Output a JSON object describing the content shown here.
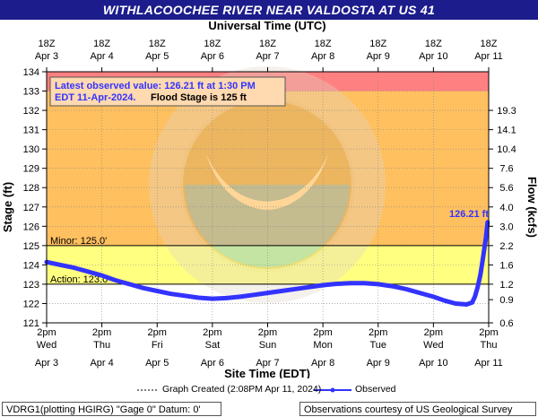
{
  "header": {
    "title": "WITHLACOOCHEE RIVER NEAR VALDOSTA AT US 41"
  },
  "chart_data": {
    "type": "line",
    "title": "WITHLACOOCHEE RIVER NEAR VALDOSTA AT US 41",
    "top_axis_label": "Universal Time (UTC)",
    "xlabel": "Site Time (EDT)",
    "ylabel": "Stage (ft)",
    "y2label": "Flow (kcfs)",
    "ylim": [
      121,
      134
    ],
    "yticks": [
      121,
      122,
      123,
      124,
      125,
      126,
      127,
      128,
      129,
      130,
      131,
      132,
      133,
      134
    ],
    "flow_ticks": [
      {
        "stage": 122.2,
        "label": "0.9"
      },
      {
        "stage": 123.0,
        "label": "1.2"
      },
      {
        "stage": 124.0,
        "label": "1.6"
      },
      {
        "stage": 125.0,
        "label": "2.2"
      },
      {
        "stage": 126.0,
        "label": "3.0"
      },
      {
        "stage": 127.0,
        "label": "4.0"
      },
      {
        "stage": 128.0,
        "label": "5.6"
      },
      {
        "stage": 129.0,
        "label": "7.6"
      },
      {
        "stage": 130.0,
        "label": "10.4"
      },
      {
        "stage": 131.0,
        "label": "14.1"
      },
      {
        "stage": 132.0,
        "label": "19.3"
      },
      {
        "stage": 121.0,
        "label": "0.6"
      }
    ],
    "bottom_ticks": [
      {
        "t": "2pm",
        "d": "Wed",
        "date": "Apr 3"
      },
      {
        "t": "2pm",
        "d": "Thu",
        "date": "Apr 4"
      },
      {
        "t": "2pm",
        "d": "Fri",
        "date": "Apr 5"
      },
      {
        "t": "2pm",
        "d": "Sat",
        "date": "Apr 6"
      },
      {
        "t": "2pm",
        "d": "Sun",
        "date": "Apr 7"
      },
      {
        "t": "2pm",
        "d": "Mon",
        "date": "Apr 8"
      },
      {
        "t": "2pm",
        "d": "Tue",
        "date": "Apr 9"
      },
      {
        "t": "2pm",
        "d": "Wed",
        "date": "Apr 10"
      },
      {
        "t": "2pm",
        "d": "Thu",
        "date": "Apr 11"
      }
    ],
    "top_ticks": [
      {
        "t": "18Z",
        "date": "Apr 3"
      },
      {
        "t": "18Z",
        "date": "Apr 4"
      },
      {
        "t": "18Z",
        "date": "Apr 5"
      },
      {
        "t": "18Z",
        "date": "Apr 6"
      },
      {
        "t": "18Z",
        "date": "Apr 7"
      },
      {
        "t": "18Z",
        "date": "Apr 8"
      },
      {
        "t": "18Z",
        "date": "Apr 9"
      },
      {
        "t": "18Z",
        "date": "Apr 10"
      },
      {
        "t": "18Z",
        "date": "Apr 11"
      }
    ],
    "bands": [
      {
        "from": 121,
        "to": 123,
        "color": "#ffffff"
      },
      {
        "from": 123,
        "to": 125,
        "color": "#ffff80"
      },
      {
        "from": 125,
        "to": 133,
        "color": "#ffc060"
      },
      {
        "from": 133,
        "to": 134,
        "color": "#ff8080"
      }
    ],
    "thresholds": [
      {
        "stage": 125.0,
        "label": "Minor: 125.0'"
      },
      {
        "stage": 123.0,
        "label": "Action: 123.0'"
      }
    ],
    "info_box": {
      "line1": "Latest observed value: 126.21 ft at 1:30 PM",
      "line2_a": "EDT 11-Apr-2024.",
      "line2_b": "Flood Stage is 125 ft"
    },
    "last_value_label": "126.21 ft",
    "series": [
      {
        "name": "Observed",
        "color": "#3333ff",
        "x": [
          0,
          0.25,
          0.5,
          0.75,
          1.0,
          1.25,
          1.5,
          1.75,
          2.0,
          2.25,
          2.5,
          2.75,
          3.0,
          3.25,
          3.5,
          3.75,
          4.0,
          4.25,
          4.5,
          4.75,
          5.0,
          5.25,
          5.5,
          5.75,
          6.0,
          6.25,
          6.5,
          6.75,
          7.0,
          7.2,
          7.4,
          7.6,
          7.7,
          7.75,
          7.8,
          7.85,
          7.9,
          7.95,
          7.98
        ],
        "y": [
          124.15,
          124.0,
          123.85,
          123.65,
          123.45,
          123.2,
          123.0,
          122.8,
          122.65,
          122.5,
          122.4,
          122.3,
          122.25,
          122.28,
          122.35,
          122.45,
          122.55,
          122.65,
          122.75,
          122.85,
          122.95,
          123.02,
          123.05,
          123.05,
          123.0,
          122.9,
          122.75,
          122.55,
          122.35,
          122.15,
          122.0,
          121.95,
          122.05,
          122.35,
          122.85,
          123.5,
          124.4,
          125.4,
          126.21
        ]
      }
    ],
    "legend": {
      "created": "Graph Created (2:08PM Apr 11, 2024)",
      "observed": "Observed"
    }
  },
  "footer": {
    "left": "VDRG1(plotting HGIRG) \"Gage 0\" Datum: 0'",
    "right": "Observations courtesy of US Geological Survey"
  }
}
